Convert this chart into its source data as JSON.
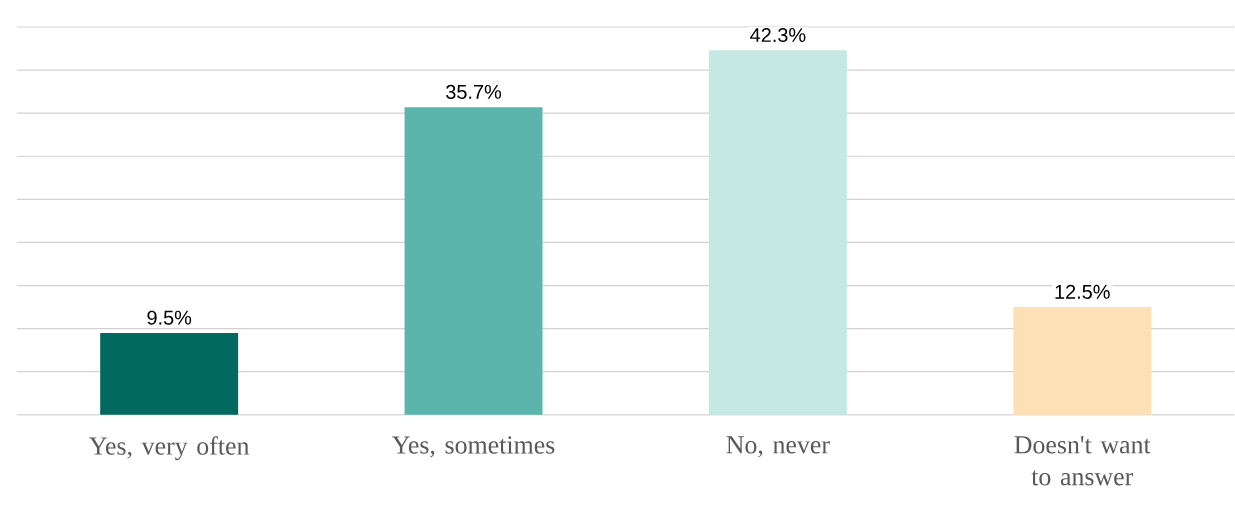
{
  "chart_data": {
    "type": "bar",
    "categories": [
      "Yes, very often",
      "Yes, sometimes",
      "No, never",
      "Doesn't want to answer"
    ],
    "values": [
      9.5,
      35.7,
      42.3,
      12.5
    ],
    "colors": [
      "#026860",
      "#5bb5ac",
      "#c5e9e2",
      "#fde0b5"
    ],
    "value_labels": [
      "9.5%",
      "35.7%",
      "42.3%",
      "12.5%"
    ],
    "ylim": [
      0,
      45
    ],
    "yticks": [
      0,
      5,
      10,
      15,
      20,
      25,
      30,
      35,
      40,
      45
    ],
    "tick_labels": "x",
    "grid": "y"
  }
}
